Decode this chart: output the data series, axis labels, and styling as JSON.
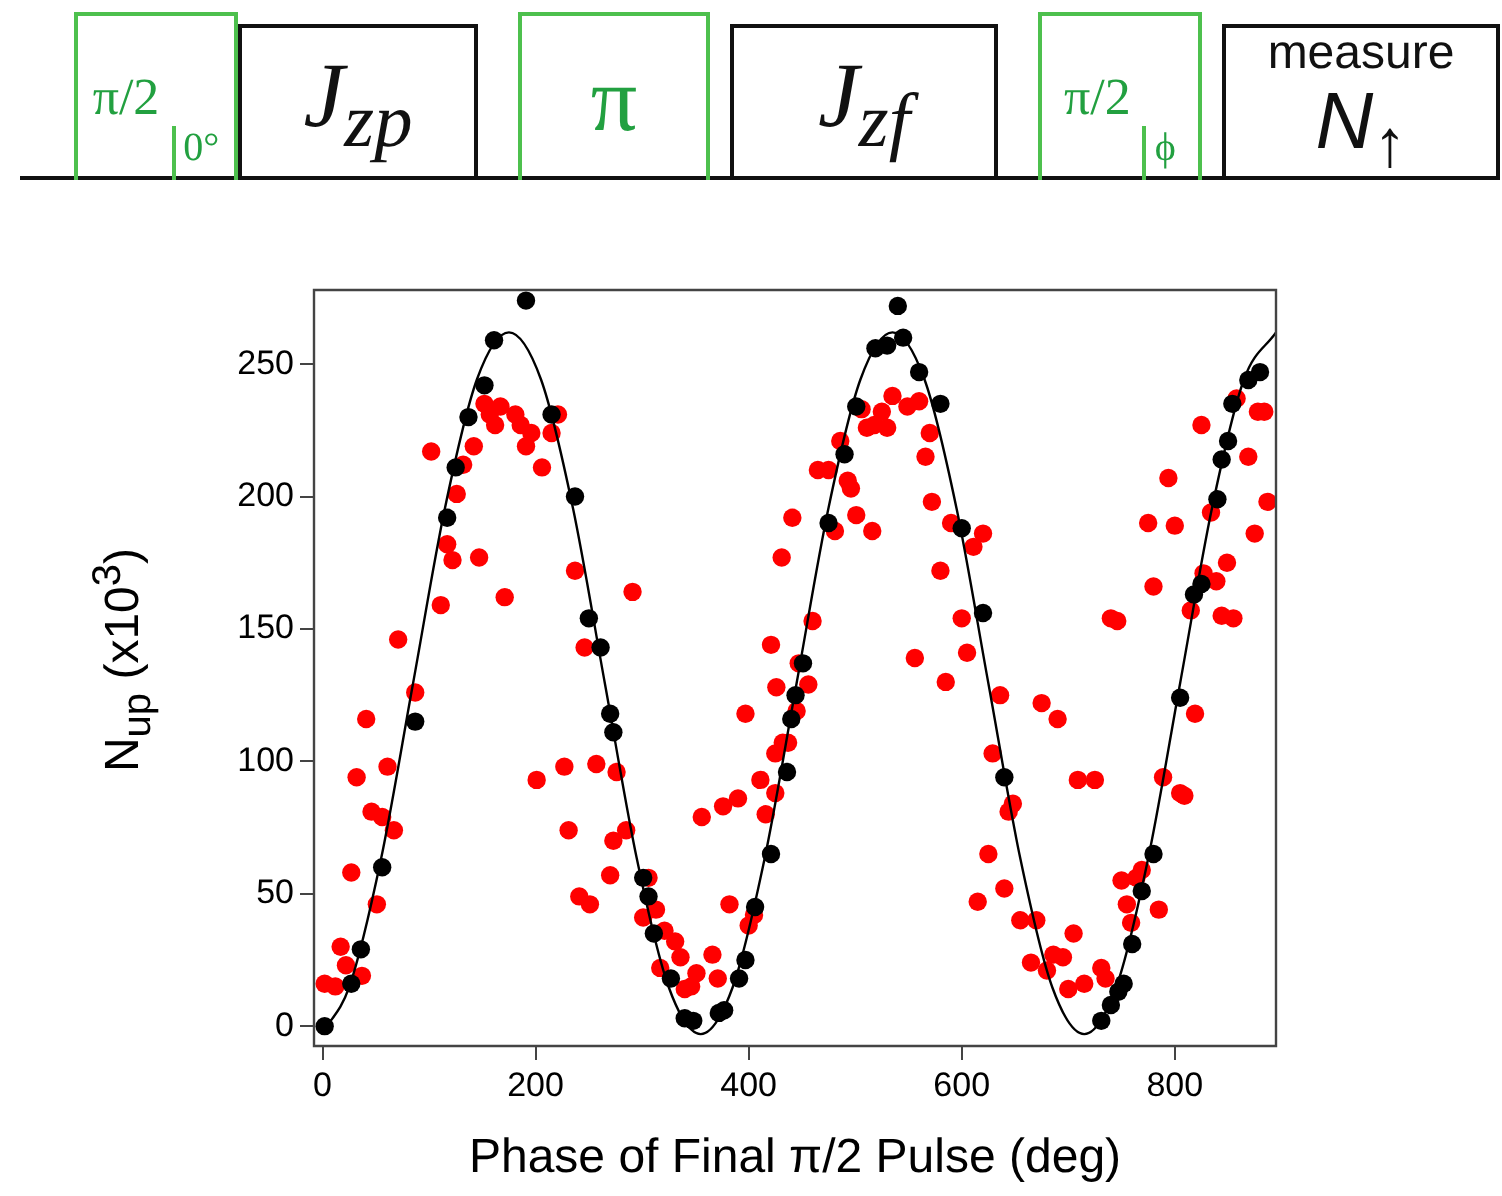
{
  "chart_data": {
    "type": "scatter",
    "xlabel": "Phase of Final π/2 Pulse (deg)",
    "ylabel": "N$_{up}$  (x10$^{3}$)",
    "xlim": [
      -8,
      895
    ],
    "ylim": [
      -7.5,
      278
    ],
    "xticks": [
      0,
      200,
      400,
      600,
      800
    ],
    "yticks": [
      0,
      50,
      100,
      150,
      200,
      250
    ],
    "annotations": [
      "π/2",
      "0°",
      "J$_{zp}$",
      "π",
      "J$_{zf}$",
      "π/2",
      "ϕ",
      "measure",
      "N$_{↑}$"
    ],
    "series": [
      {
        "type": "scatter",
        "marker": "circle",
        "color": "#ff0000",
        "x": [
          2,
          12,
          17,
          22,
          37,
          27,
          32,
          41,
          46,
          56,
          61,
          67,
          51,
          71,
          87,
          102,
          111,
          117,
          122,
          126,
          132,
          142,
          147,
          152,
          157,
          162,
          167,
          171,
          181,
          186,
          191,
          196,
          201,
          206,
          215,
          221,
          227,
          231,
          237,
          241,
          246,
          251,
          257,
          270,
          273,
          276,
          285,
          291,
          301,
          306,
          301,
          313,
          321,
          331,
          336,
          317,
          340,
          346,
          351,
          366,
          371,
          356,
          376,
          382,
          390,
          397,
          400,
          405,
          411,
          416,
          425,
          425,
          432,
          437,
          445,
          447,
          426,
          421,
          456,
          460,
          431,
          441,
          465,
          475,
          481,
          486,
          493,
          496,
          501,
          516,
          506,
          511,
          518,
          525,
          530,
          535,
          549,
          560,
          556,
          570,
          566,
          572,
          590,
          611,
          620,
          580,
          600,
          605,
          585,
          636,
          629,
          648,
          644,
          625,
          615,
          640,
          655,
          670,
          675,
          690,
          665,
          680,
          686,
          695,
          705,
          700,
          715,
          709,
          725,
          731,
          735,
          740,
          746,
          750,
          755,
          759,
          764,
          769,
          785,
          789,
          805,
          809,
          819,
          775,
          780,
          800,
          794,
          815,
          827,
          834,
          839,
          849,
          844,
          855,
          825,
          858,
          869,
          875,
          878,
          884,
          887
        ],
        "values": [
          16,
          15,
          30,
          23,
          19,
          58,
          94,
          116,
          81,
          79,
          98,
          74,
          46,
          146,
          126,
          217,
          159,
          182,
          176,
          201,
          212,
          219,
          177,
          235,
          231,
          227,
          234,
          162,
          231,
          227,
          219,
          224,
          93,
          211,
          224,
          231,
          98,
          74,
          172,
          49,
          143,
          46,
          99,
          57,
          70,
          96,
          74,
          164,
          null,
          56,
          41,
          44,
          36,
          32,
          26,
          22,
          14,
          15,
          20,
          27,
          18,
          79,
          83,
          46,
          86,
          118,
          38,
          42,
          93,
          80,
          88,
          103,
          107,
          107,
          119,
          137,
          128,
          144,
          129,
          153,
          177,
          192,
          210,
          210,
          187,
          221,
          206,
          203,
          193,
          187,
          233,
          226,
          227,
          232,
          226,
          238,
          234,
          236,
          139,
          224,
          215,
          198,
          190,
          181,
          186,
          172,
          154,
          141,
          130,
          125,
          103,
          84,
          81,
          65,
          47,
          52,
          40,
          40,
          122,
          116,
          24,
          21,
          27,
          26,
          35,
          14,
          16,
          93,
          93,
          22,
          18,
          154,
          153,
          55,
          46,
          39,
          56,
          59,
          44,
          94,
          88,
          87,
          118,
          190,
          166,
          189,
          207,
          157,
          171,
          194,
          168,
          175,
          155,
          154,
          227,
          237,
          215,
          186,
          232,
          232,
          198
        ]
      },
      {
        "type": "scatter",
        "marker": "circle",
        "color": "#000000",
        "x": [
          2,
          27,
          36,
          56,
          87,
          117,
          125,
          137,
          152,
          161,
          191,
          215,
          237,
          250,
          261,
          270,
          273,
          301,
          306,
          311,
          327,
          340,
          348,
          372,
          377,
          391,
          397,
          406,
          421,
          436,
          440,
          444,
          451,
          475,
          490,
          501,
          519,
          530,
          540,
          545,
          560,
          580,
          600,
          620,
          640,
          731,
          740,
          747,
          752,
          760,
          769,
          780,
          805,
          818,
          825,
          840,
          844,
          850,
          854,
          869,
          880
        ],
        "values": [
          0,
          16,
          29,
          60,
          115,
          192,
          211,
          230,
          242,
          259,
          274,
          231,
          200,
          154,
          143,
          118,
          111,
          56,
          49,
          35,
          18,
          3,
          2,
          5,
          6,
          18,
          25,
          45,
          65,
          96,
          116,
          125,
          137,
          190,
          216,
          234,
          256,
          257,
          272,
          260,
          247,
          235,
          188,
          156,
          94,
          2,
          8,
          13,
          16,
          31,
          51,
          65,
          124,
          163,
          167,
          199,
          214,
          221,
          235,
          244,
          247
        ]
      },
      {
        "type": "line",
        "color": "#000000",
        "x": [
          0,
          25,
          55,
          85,
          115,
          145,
          175,
          205,
          235,
          265,
          295,
          325,
          355,
          385,
          415,
          445,
          475,
          505,
          535,
          565,
          595,
          625,
          655,
          685,
          715,
          745,
          775,
          805,
          835,
          865,
          895
        ],
        "values": [
          -2.5,
          14.7,
          63.3,
          129.5,
          195.8,
          244.3,
          262,
          244.3,
          195.8,
          129.5,
          63.3,
          14.7,
          -3,
          14.7,
          63.3,
          129.5,
          195.8,
          244.3,
          262,
          244.3,
          195.8,
          129.5,
          63.3,
          14.7,
          -3,
          14.7,
          63.3,
          129.5,
          195.8,
          244.3,
          262
        ]
      }
    ]
  }
}
